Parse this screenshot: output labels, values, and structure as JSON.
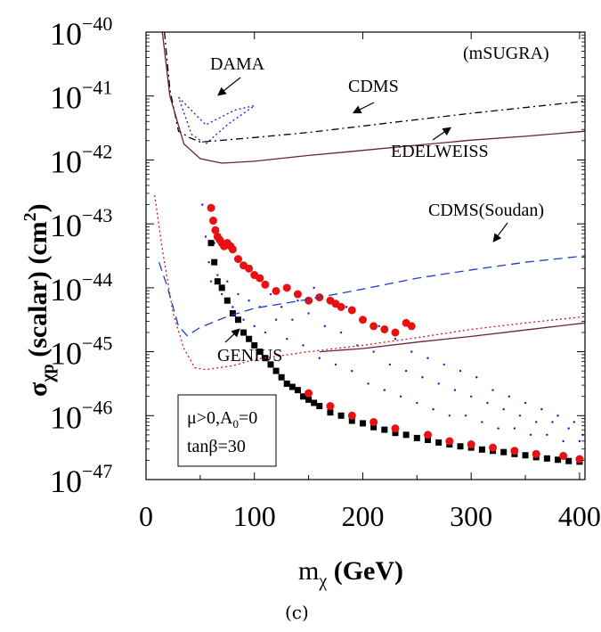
{
  "chart_data": {
    "type": "scatter",
    "y_scale": "log",
    "xlim": [
      0,
      405
    ],
    "ylim": [
      1e-47,
      1e-40
    ],
    "grid": false,
    "x_ticks": [
      {
        "value": 0,
        "label": "0"
      },
      {
        "value": 100,
        "label": "100"
      },
      {
        "value": 200,
        "label": "200"
      },
      {
        "value": 300,
        "label": "300"
      },
      {
        "value": 400,
        "label": "400"
      }
    ],
    "y_ticks": [
      {
        "value": -40,
        "base": "10",
        "exp": "−40"
      },
      {
        "value": -41,
        "base": "10",
        "exp": "−41"
      },
      {
        "value": -42,
        "base": "10",
        "exp": "−42"
      },
      {
        "value": -43,
        "base": "10",
        "exp": "−43"
      },
      {
        "value": -44,
        "base": "10",
        "exp": "−44"
      },
      {
        "value": -45,
        "base": "10",
        "exp": "−45"
      },
      {
        "value": -46,
        "base": "10",
        "exp": "−46"
      },
      {
        "value": -47,
        "base": "10",
        "exp": "−47"
      }
    ],
    "xlabel": {
      "main": "m",
      "sub": "χ",
      "unit": " (GeV)"
    },
    "ylabel": {
      "main": "σ",
      "sub": "χp",
      "rest": " (scalar) (cm",
      "sup": "2",
      "end": ")"
    },
    "caption": "(c)",
    "model_label": "(mSUGRA)",
    "params": {
      "line1_prefix": "μ>0,A",
      "line1_sub": "0",
      "line1_suffix": "=0",
      "line2": "tanβ=30"
    },
    "curves": [
      {
        "name": "DAMA",
        "color": "#1a1acc",
        "style": "dotted",
        "points": [
          [
            30,
            -41.02
          ],
          [
            55,
            -41.45
          ],
          [
            82,
            -41.22
          ],
          [
            100,
            -41.15
          ],
          [
            75,
            -41.45
          ],
          [
            55,
            -41.75
          ],
          [
            42,
            -41.6
          ],
          [
            30,
            -41.02
          ]
        ]
      },
      {
        "name": "CDMS",
        "color": "#000000",
        "style": "dashdot",
        "points": [
          [
            17,
            -40.0
          ],
          [
            22,
            -40.9
          ],
          [
            30,
            -41.55
          ],
          [
            40,
            -41.65
          ],
          [
            50,
            -41.72
          ],
          [
            65,
            -41.7
          ],
          [
            100,
            -41.65
          ],
          [
            150,
            -41.57
          ],
          [
            200,
            -41.47
          ],
          [
            250,
            -41.37
          ],
          [
            300,
            -41.27
          ],
          [
            350,
            -41.18
          ],
          [
            405,
            -41.08
          ]
        ]
      },
      {
        "name": "EDELWEISS",
        "color": "#6a1f4a",
        "style": "solid",
        "points": [
          [
            15,
            -40.0
          ],
          [
            22,
            -41.0
          ],
          [
            35,
            -41.75
          ],
          [
            50,
            -41.98
          ],
          [
            70,
            -42.05
          ],
          [
            100,
            -42.02
          ],
          [
            150,
            -41.93
          ],
          [
            200,
            -41.85
          ],
          [
            250,
            -41.77
          ],
          [
            300,
            -41.69
          ],
          [
            350,
            -41.63
          ],
          [
            405,
            -41.55
          ]
        ]
      },
      {
        "name": "CDMS(Soudan)",
        "color": "#1a3fcc",
        "style": "dashed",
        "points": [
          [
            12,
            -43.6
          ],
          [
            20,
            -44.0
          ],
          [
            30,
            -44.6
          ],
          [
            38,
            -44.75
          ],
          [
            50,
            -44.62
          ],
          [
            75,
            -44.45
          ],
          [
            100,
            -44.32
          ],
          [
            150,
            -44.18
          ],
          [
            200,
            -44.02
          ],
          [
            250,
            -43.85
          ],
          [
            300,
            -43.72
          ],
          [
            350,
            -43.6
          ],
          [
            405,
            -43.5
          ]
        ]
      },
      {
        "name": "GENIUS",
        "color": "#cc1a1a",
        "style": "dotted",
        "points": [
          [
            8,
            -42.55
          ],
          [
            15,
            -43.4
          ],
          [
            25,
            -44.4
          ],
          [
            35,
            -44.95
          ],
          [
            45,
            -45.25
          ],
          [
            55,
            -45.28
          ],
          [
            80,
            -45.22
          ],
          [
            100,
            -45.12
          ],
          [
            150,
            -45.0
          ],
          [
            200,
            -44.9
          ],
          [
            250,
            -44.78
          ],
          [
            300,
            -44.65
          ],
          [
            350,
            -44.55
          ],
          [
            405,
            -44.45
          ]
        ]
      },
      {
        "name": "",
        "color": "#6a1f4a",
        "style": "solid",
        "points": [
          [
            160,
            -45.0
          ],
          [
            200,
            -44.95
          ],
          [
            250,
            -44.85
          ],
          [
            300,
            -44.76
          ],
          [
            350,
            -44.66
          ],
          [
            405,
            -44.55
          ]
        ]
      }
    ],
    "series": [
      {
        "name": "",
        "color": "#1a1acc",
        "marker": "dot",
        "points": [
          [
            52,
            -42.7
          ],
          [
            55,
            -43.2
          ],
          [
            58,
            -43.6
          ],
          [
            60,
            -43.9
          ],
          [
            63,
            -43.3
          ],
          [
            66,
            -43.8
          ],
          [
            70,
            -44.1
          ],
          [
            75,
            -43.9
          ],
          [
            80,
            -44.3
          ],
          [
            85,
            -44.1
          ],
          [
            90,
            -44.5
          ],
          [
            95,
            -44.2
          ],
          [
            100,
            -44.6
          ],
          [
            105,
            -44.3
          ],
          [
            110,
            -44.7
          ],
          [
            115,
            -44.1
          ],
          [
            120,
            -44.5
          ],
          [
            125,
            -44.3
          ],
          [
            130,
            -44.8
          ],
          [
            135,
            -44.5
          ],
          [
            140,
            -44.2
          ],
          [
            145,
            -44.9
          ],
          [
            150,
            -44.4
          ],
          [
            155,
            -44.0
          ],
          [
            160,
            -45.1
          ],
          [
            165,
            -44.6
          ],
          [
            170,
            -44.2
          ],
          [
            175,
            -45.2
          ],
          [
            180,
            -44.7
          ],
          [
            185,
            -44.3
          ],
          [
            190,
            -45.3
          ],
          [
            195,
            -44.9
          ],
          [
            200,
            -44.5
          ],
          [
            205,
            -45.5
          ],
          [
            210,
            -45.0
          ],
          [
            215,
            -44.6
          ],
          [
            220,
            -45.6
          ],
          [
            225,
            -45.2
          ],
          [
            230,
            -44.8
          ],
          [
            235,
            -45.7
          ],
          [
            240,
            -45.3
          ],
          [
            245,
            -45.0
          ],
          [
            250,
            -45.8
          ],
          [
            255,
            -45.4
          ],
          [
            260,
            -45.1
          ],
          [
            265,
            -45.9
          ],
          [
            270,
            -45.5
          ],
          [
            275,
            -45.2
          ],
          [
            280,
            -46.0
          ],
          [
            285,
            -45.6
          ],
          [
            290,
            -45.3
          ],
          [
            295,
            -46.0
          ],
          [
            300,
            -45.7
          ],
          [
            305,
            -45.4
          ],
          [
            310,
            -46.1
          ],
          [
            315,
            -45.8
          ],
          [
            320,
            -45.6
          ],
          [
            325,
            -46.2
          ],
          [
            330,
            -45.9
          ],
          [
            335,
            -45.7
          ],
          [
            340,
            -46.2
          ],
          [
            345,
            -46.0
          ],
          [
            350,
            -45.8
          ],
          [
            355,
            -46.3
          ],
          [
            360,
            -46.1
          ],
          [
            365,
            -45.9
          ],
          [
            370,
            -46.3
          ],
          [
            375,
            -46.1
          ],
          [
            380,
            -46.0
          ],
          [
            385,
            -46.4
          ],
          [
            390,
            -46.2
          ],
          [
            395,
            -46.1
          ],
          [
            400,
            -46.4
          ],
          [
            403,
            -46.3
          ]
        ]
      },
      {
        "name": "",
        "color": "#000000",
        "marker": "square",
        "points": [
          [
            60,
            -43.3
          ],
          [
            63,
            -43.6
          ],
          [
            66,
            -43.9
          ],
          [
            70,
            -44.0
          ],
          [
            75,
            -44.2
          ],
          [
            80,
            -44.4
          ],
          [
            85,
            -44.5
          ],
          [
            90,
            -44.7
          ],
          [
            95,
            -44.8
          ],
          [
            100,
            -44.9
          ],
          [
            105,
            -45.0
          ],
          [
            110,
            -45.1
          ],
          [
            115,
            -45.2
          ],
          [
            120,
            -45.3
          ],
          [
            125,
            -45.4
          ],
          [
            130,
            -45.5
          ],
          [
            135,
            -45.55
          ],
          [
            140,
            -45.6
          ],
          [
            145,
            -45.7
          ],
          [
            150,
            -45.75
          ],
          [
            155,
            -45.8
          ],
          [
            160,
            -45.85
          ],
          [
            170,
            -45.95
          ],
          [
            180,
            -46.0
          ],
          [
            190,
            -46.08
          ],
          [
            200,
            -46.12
          ],
          [
            210,
            -46.18
          ],
          [
            220,
            -46.22
          ],
          [
            230,
            -46.27
          ],
          [
            240,
            -46.3
          ],
          [
            250,
            -46.35
          ],
          [
            260,
            -46.38
          ],
          [
            270,
            -46.42
          ],
          [
            280,
            -46.45
          ],
          [
            290,
            -46.48
          ],
          [
            300,
            -46.5
          ],
          [
            310,
            -46.53
          ],
          [
            320,
            -46.55
          ],
          [
            330,
            -46.57
          ],
          [
            340,
            -46.6
          ],
          [
            350,
            -46.62
          ],
          [
            360,
            -46.65
          ],
          [
            370,
            -46.67
          ],
          [
            380,
            -46.69
          ],
          [
            390,
            -46.71
          ],
          [
            400,
            -46.72
          ]
        ]
      },
      {
        "name": "",
        "color": "#e81010",
        "marker": "circle",
        "points": [
          [
            60,
            -42.75
          ],
          [
            62,
            -42.95
          ],
          [
            64,
            -43.1
          ],
          [
            66,
            -43.2
          ],
          [
            68,
            -43.25
          ],
          [
            70,
            -43.3
          ],
          [
            72,
            -43.35
          ],
          [
            75,
            -43.3
          ],
          [
            78,
            -43.35
          ],
          [
            80,
            -43.4
          ],
          [
            85,
            -43.55
          ],
          [
            90,
            -43.65
          ],
          [
            95,
            -43.7
          ],
          [
            100,
            -43.8
          ],
          [
            105,
            -43.85
          ],
          [
            110,
            -43.95
          ],
          [
            120,
            -44.05
          ],
          [
            130,
            -44.0
          ],
          [
            140,
            -44.1
          ],
          [
            150,
            -44.2
          ],
          [
            160,
            -44.15
          ],
          [
            170,
            -44.2
          ],
          [
            175,
            -44.25
          ],
          [
            180,
            -44.3
          ],
          [
            190,
            -44.35
          ],
          [
            200,
            -44.5
          ],
          [
            210,
            -44.6
          ],
          [
            220,
            -44.65
          ],
          [
            230,
            -44.7
          ],
          [
            240,
            -44.55
          ],
          [
            245,
            -44.6
          ],
          [
            150,
            -45.65
          ],
          [
            170,
            -45.85
          ],
          [
            190,
            -46.0
          ],
          [
            210,
            -46.1
          ],
          [
            230,
            -46.2
          ],
          [
            260,
            -46.3
          ],
          [
            280,
            -46.4
          ],
          [
            300,
            -46.45
          ],
          [
            320,
            -46.5
          ],
          [
            340,
            -46.55
          ],
          [
            360,
            -46.6
          ],
          [
            385,
            -46.63
          ],
          [
            400,
            -46.68
          ]
        ]
      }
    ]
  }
}
